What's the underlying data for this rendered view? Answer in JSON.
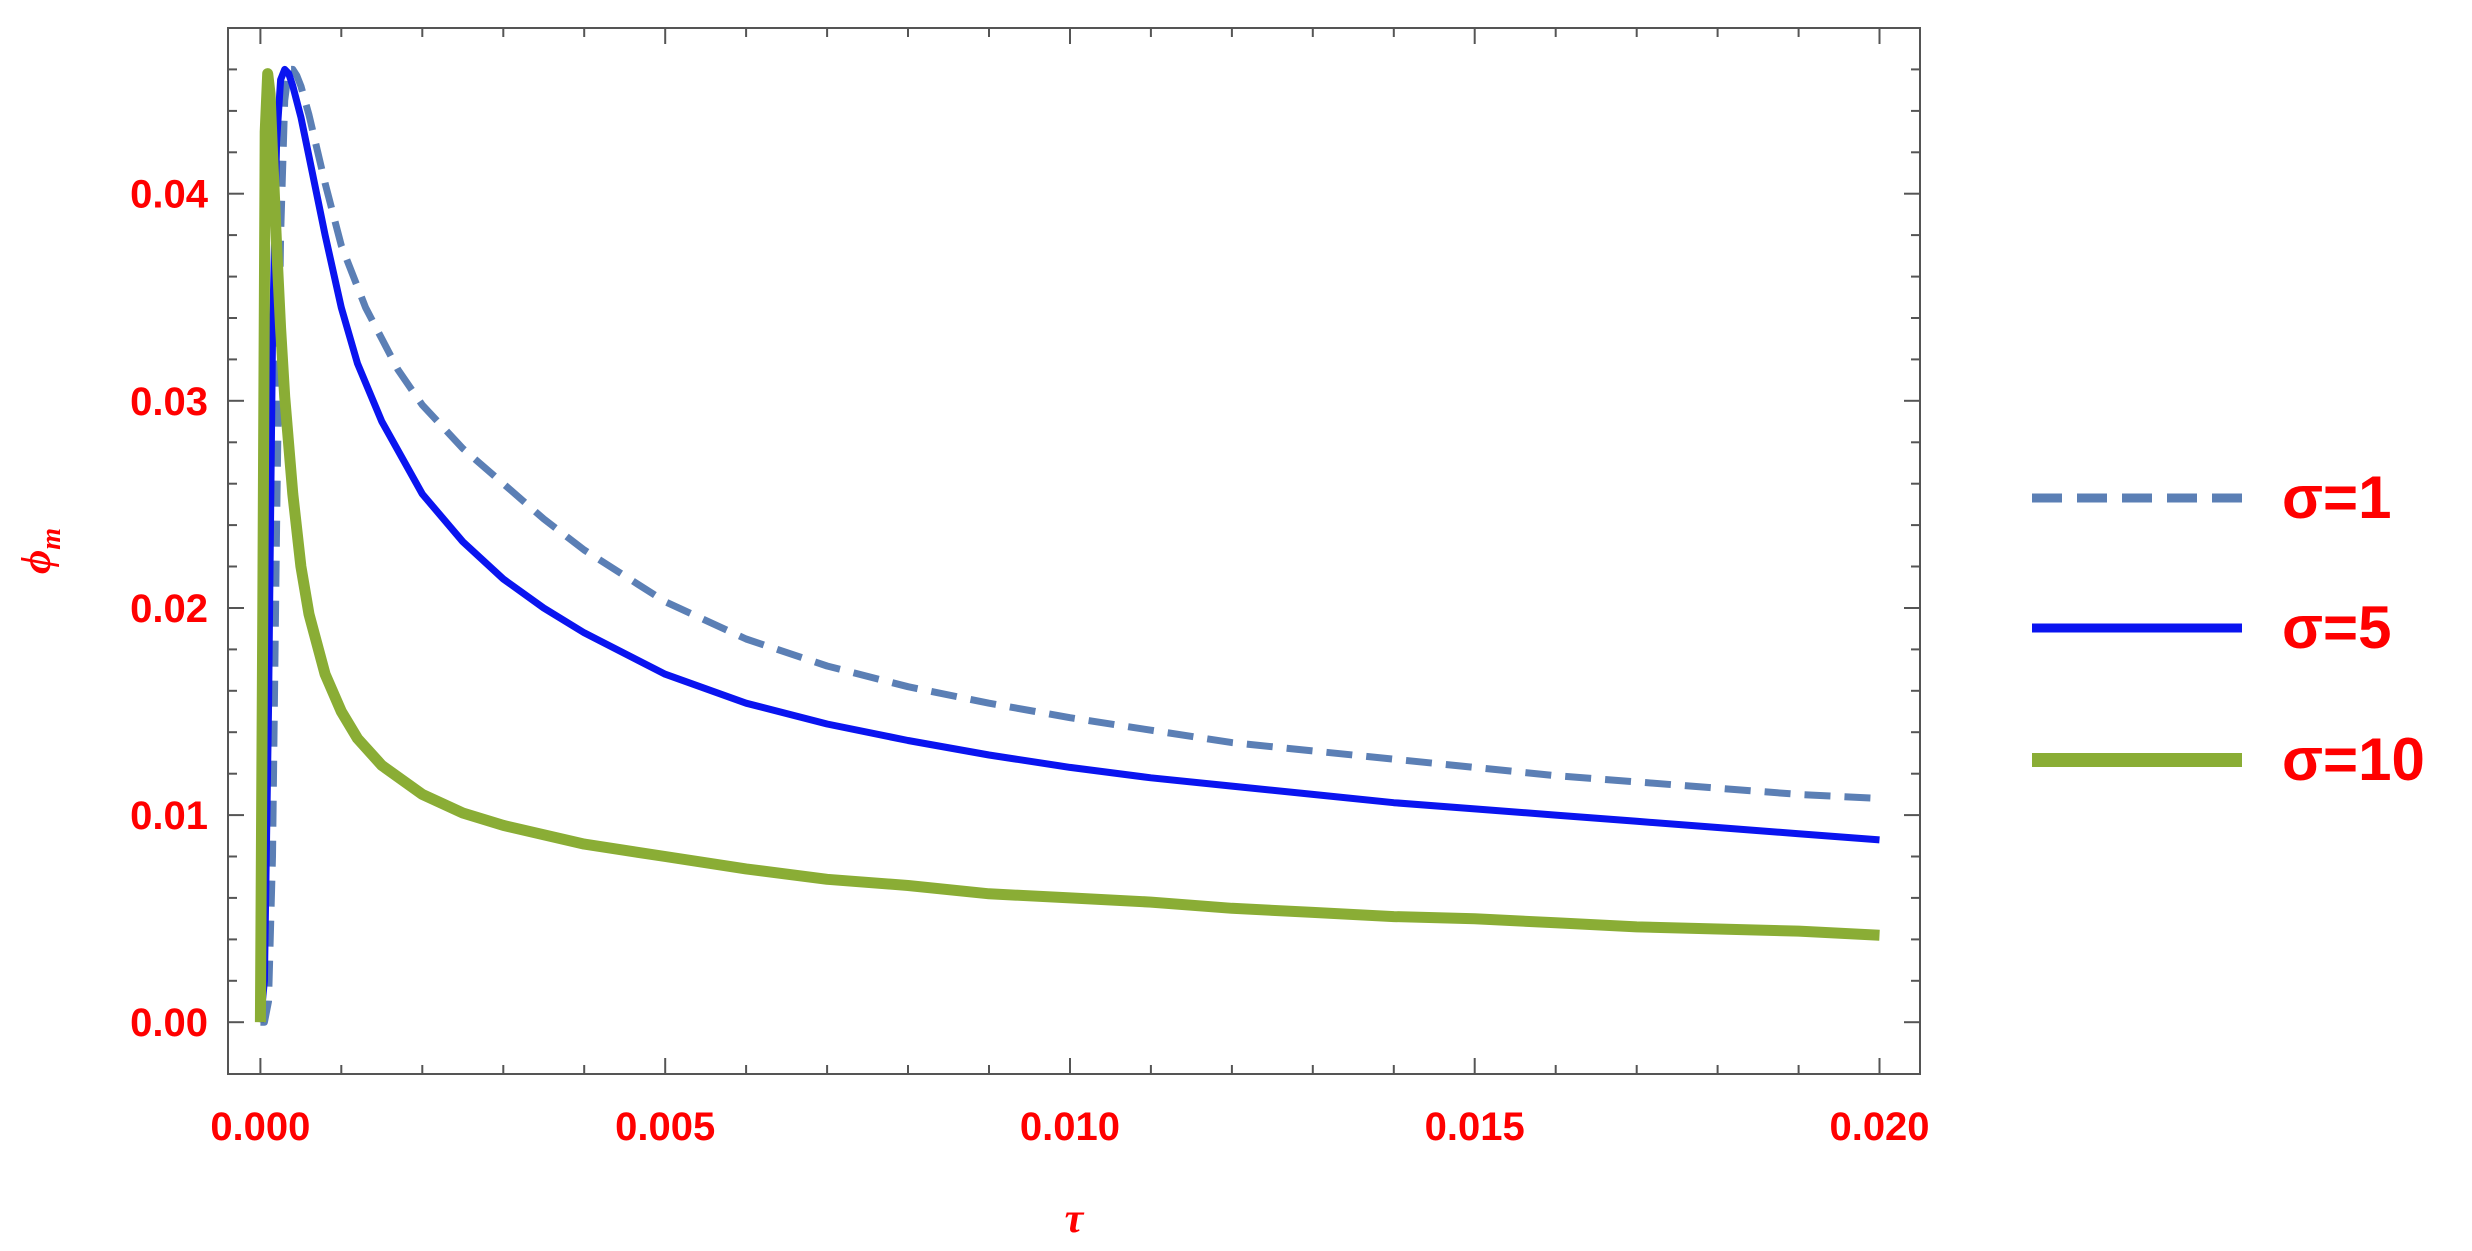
{
  "chart_data": {
    "type": "line",
    "title": "",
    "xlabel": "τ",
    "ylabel": "ϕ_m",
    "ylabel_main": "ϕ",
    "ylabel_sub": "m",
    "xlim": [
      -0.0004,
      0.0205
    ],
    "ylim": [
      -0.0025,
      0.048
    ],
    "x_ticks": [
      "0.000",
      "0.005",
      "0.010",
      "0.015",
      "0.020"
    ],
    "y_ticks": [
      "0.00",
      "0.01",
      "0.02",
      "0.03",
      "0.04"
    ],
    "grid": false,
    "legend_position": "right",
    "series": [
      {
        "name": "σ=1",
        "color": "#5b7fb5",
        "style": "dashed",
        "x": [
          0.0,
          5e-05,
          0.0001,
          0.00015,
          0.0002,
          0.00025,
          0.0003,
          0.00035,
          0.0004,
          0.00045,
          0.0005,
          0.0006,
          0.0008,
          0.001,
          0.0013,
          0.0017,
          0.002,
          0.0025,
          0.003,
          0.0035,
          0.004,
          0.005,
          0.006,
          0.007,
          0.008,
          0.009,
          0.01,
          0.011,
          0.012,
          0.013,
          0.014,
          0.015,
          0.016,
          0.017,
          0.018,
          0.019,
          0.02
        ],
        "y": [
          0.0,
          0.0,
          0.001,
          0.008,
          0.024,
          0.038,
          0.0445,
          0.046,
          0.046,
          0.0457,
          0.0452,
          0.0438,
          0.0405,
          0.0375,
          0.0345,
          0.0315,
          0.0298,
          0.0277,
          0.026,
          0.0243,
          0.0228,
          0.0203,
          0.0185,
          0.0172,
          0.0162,
          0.0154,
          0.0147,
          0.0141,
          0.0135,
          0.0131,
          0.0127,
          0.0123,
          0.0119,
          0.0116,
          0.0113,
          0.011,
          0.0108
        ]
      },
      {
        "name": "σ=5",
        "color": "#0a14f0",
        "style": "solid",
        "x": [
          0.0,
          5e-05,
          0.0001,
          0.00015,
          0.0002,
          0.00025,
          0.0003,
          0.00035,
          0.0004,
          0.0005,
          0.0006,
          0.0008,
          0.001,
          0.0012,
          0.0015,
          0.002,
          0.0025,
          0.003,
          0.0035,
          0.004,
          0.005,
          0.006,
          0.007,
          0.008,
          0.009,
          0.01,
          0.011,
          0.012,
          0.013,
          0.014,
          0.015,
          0.016,
          0.017,
          0.018,
          0.019,
          0.02
        ],
        "y": [
          0.0,
          0.002,
          0.015,
          0.033,
          0.0425,
          0.0455,
          0.046,
          0.0458,
          0.0452,
          0.0437,
          0.0418,
          0.038,
          0.0345,
          0.0318,
          0.029,
          0.0255,
          0.0232,
          0.0214,
          0.02,
          0.0188,
          0.0168,
          0.0154,
          0.0144,
          0.0136,
          0.0129,
          0.0123,
          0.0118,
          0.0114,
          0.011,
          0.0106,
          0.0103,
          0.01,
          0.0097,
          0.0094,
          0.0091,
          0.0088
        ]
      },
      {
        "name": "σ=10",
        "color": "#8aad35",
        "style": "solid",
        "x": [
          0.0,
          3e-05,
          6e-05,
          9e-05,
          0.00012,
          0.00015,
          0.0002,
          0.00025,
          0.0003,
          0.0004,
          0.0005,
          0.0006,
          0.0008,
          0.001,
          0.0012,
          0.0015,
          0.002,
          0.0025,
          0.003,
          0.004,
          0.005,
          0.006,
          0.007,
          0.008,
          0.009,
          0.01,
          0.011,
          0.012,
          0.013,
          0.014,
          0.015,
          0.016,
          0.017,
          0.018,
          0.019,
          0.02
        ],
        "y": [
          0.0,
          0.02,
          0.043,
          0.0458,
          0.0448,
          0.042,
          0.0375,
          0.0335,
          0.0302,
          0.0255,
          0.022,
          0.0197,
          0.0168,
          0.015,
          0.0137,
          0.0124,
          0.011,
          0.0101,
          0.0095,
          0.0086,
          0.008,
          0.0074,
          0.0069,
          0.0066,
          0.0062,
          0.006,
          0.0058,
          0.0055,
          0.0053,
          0.0051,
          0.005,
          0.0048,
          0.0046,
          0.0045,
          0.0044,
          0.0042
        ]
      }
    ]
  }
}
